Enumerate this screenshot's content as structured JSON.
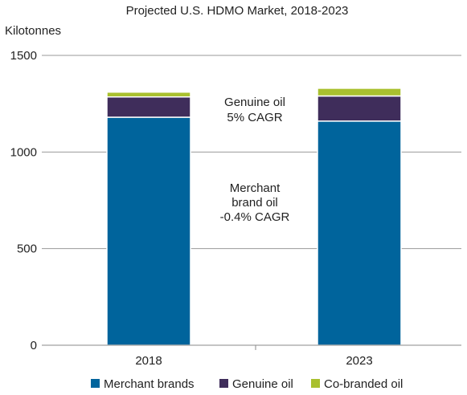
{
  "chart_data": {
    "type": "bar",
    "stacked": true,
    "title": "Projected U.S. HDMO Market, 2018-2023",
    "ylabel": "Kilotonnes",
    "xlabel": "",
    "ylim": [
      0,
      1500
    ],
    "yticks": [
      0,
      500,
      1000,
      1500
    ],
    "grid": true,
    "legend_position": "bottom",
    "categories": [
      "2018",
      "2023"
    ],
    "series": [
      {
        "name": "Merchant brands",
        "color": "#00649c",
        "values": [
          1180,
          1160
        ]
      },
      {
        "name": "Genuine oil",
        "color": "#3f2d5b",
        "values": [
          105,
          130
        ]
      },
      {
        "name": "Co-branded oil",
        "color": "#a9c02f",
        "values": [
          25,
          40
        ]
      }
    ],
    "annotations": [
      {
        "lines": [
          "Genuine oil",
          "5% CAGR"
        ]
      },
      {
        "lines": [
          "Merchant",
          "brand oil",
          "-0.4% CAGR"
        ]
      }
    ]
  }
}
